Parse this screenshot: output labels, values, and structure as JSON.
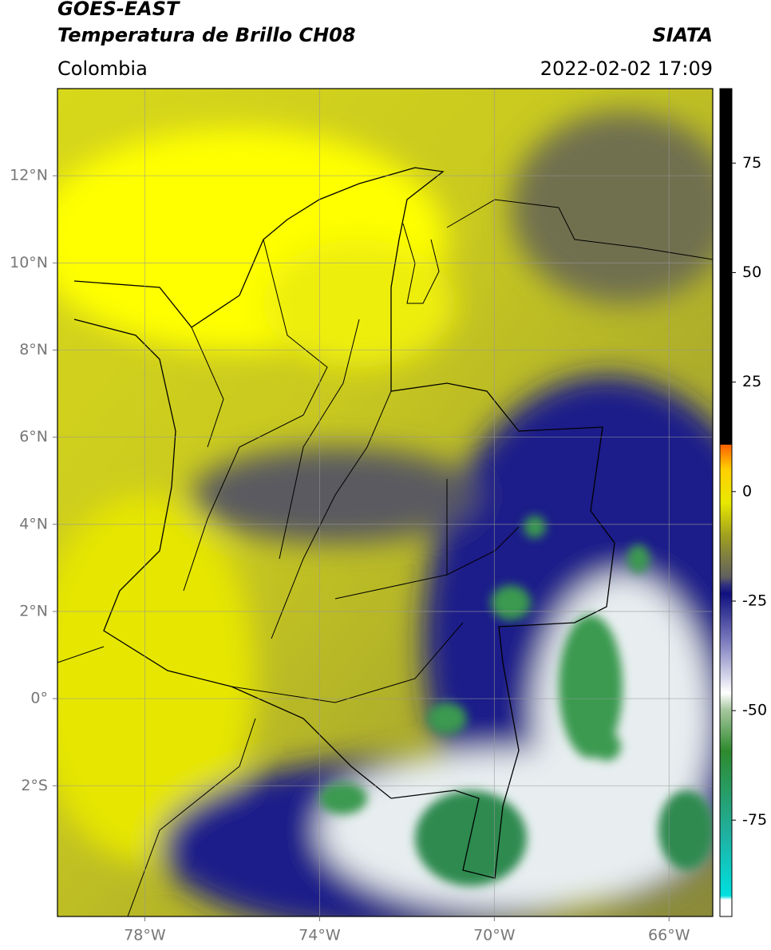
{
  "header": {
    "title_line1": "GOES-EAST",
    "title_line2": "Temperatura de Brillo CH08",
    "region": "Colombia",
    "source": "SIATA",
    "datetime": "2022-02-02 17:09"
  },
  "map": {
    "xlim": [
      -80,
      -65
    ],
    "ylim": [
      -5,
      14
    ],
    "xticks": [
      {
        "value": -78,
        "label": "78°W"
      },
      {
        "value": -74,
        "label": "74°W"
      },
      {
        "value": -70,
        "label": "70°W"
      },
      {
        "value": -66,
        "label": "66°W"
      }
    ],
    "yticks": [
      {
        "value": 12,
        "label": "12°N"
      },
      {
        "value": 10,
        "label": "10°N"
      },
      {
        "value": 8,
        "label": "8°N"
      },
      {
        "value": 6,
        "label": "6°N"
      },
      {
        "value": 4,
        "label": "4°N"
      },
      {
        "value": 2,
        "label": "2°N"
      },
      {
        "value": 0,
        "label": "0°"
      },
      {
        "value": -2,
        "label": "2°S"
      }
    ],
    "grid": true
  },
  "colorbar": {
    "lim": [
      -97,
      92
    ],
    "ticks": [
      75,
      50,
      25,
      0,
      -25,
      -50,
      -75
    ]
  }
}
